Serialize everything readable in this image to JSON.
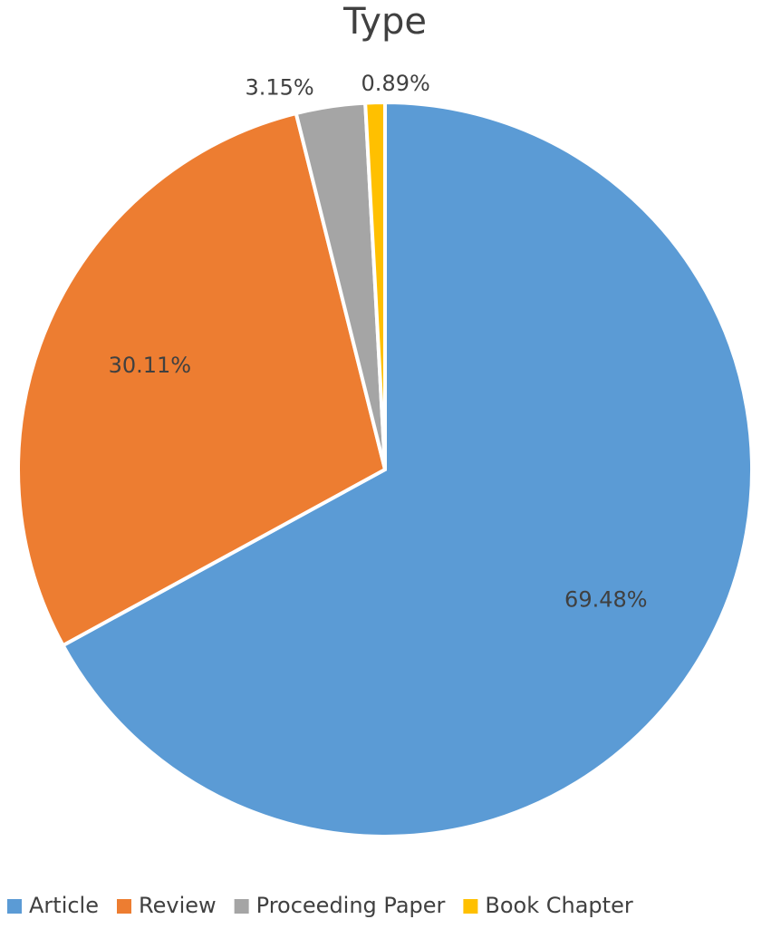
{
  "chart_data": {
    "type": "pie",
    "title": "Type",
    "categories": [
      "Article",
      "Review",
      "Proceeding Paper",
      "Book Chapter"
    ],
    "values": [
      69.48,
      30.11,
      3.15,
      0.89
    ],
    "value_labels": [
      "69.48%",
      "30.11%",
      "3.15%",
      "0.89%"
    ],
    "colors": [
      "#5b9bd5",
      "#ed7d31",
      "#a5a5a5",
      "#ffc000"
    ],
    "legend": "bottom"
  }
}
